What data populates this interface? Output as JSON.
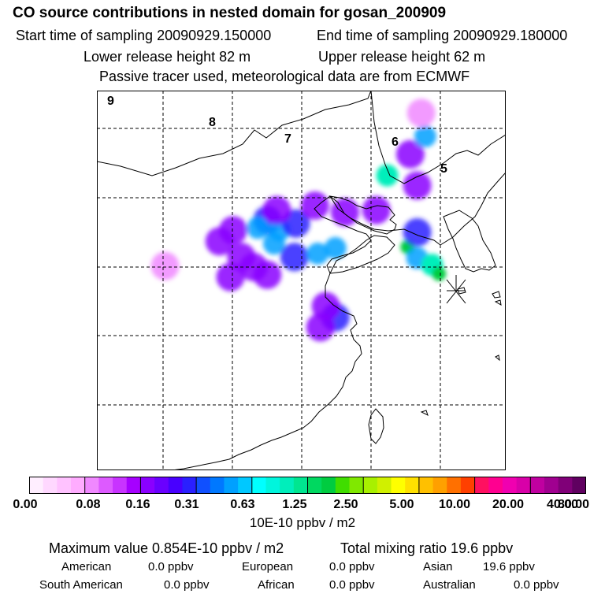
{
  "header": {
    "title": "CO  source contributions in nested domain for gosan_200909",
    "start_label": "Start time of sampling 20090929.150000",
    "end_label": "End time of sampling 20090929.180000",
    "lower_label": "Lower release height   82 m",
    "upper_label": "Upper release height   62 m",
    "note": "Passive tracer used, meteorological data are from ECMWF"
  },
  "chart_data": {
    "type": "heatmap",
    "title": "CO  source contributions in nested domain for gosan_200909",
    "map_labels": [
      "9",
      "8",
      "7",
      "6",
      "5"
    ],
    "colorbar": {
      "tick_labels": [
        "0.00",
        "0.08",
        "0.16",
        "0.31",
        "0.63",
        "1.25",
        "2.50",
        "5.00",
        "10.00",
        "20.00",
        "40.00",
        "80.00"
      ],
      "units": "10E-10 ppbv / m2",
      "colors": [
        "#ffeeff",
        "#ffd8ff",
        "#ffc2ff",
        "#ffacff",
        "#f088ff",
        "#dd5aff",
        "#c833ff",
        "#a600ff",
        "#8a00ff",
        "#6a00ff",
        "#4800ff",
        "#2a20ff",
        "#1050ff",
        "#0078ff",
        "#00a0ff",
        "#00c8ff",
        "#00ffff",
        "#00f5dd",
        "#00eebb",
        "#00e690",
        "#00d860",
        "#00cc40",
        "#40dd00",
        "#80e800",
        "#a8f000",
        "#d0f000",
        "#ffff00",
        "#ffe000",
        "#ffc000",
        "#ffa000",
        "#ff7000",
        "#ff4000",
        "#ff1060",
        "#ff0090",
        "#f000b0",
        "#d800a8",
        "#c000a0",
        "#a00090",
        "#800078",
        "#600060"
      ]
    },
    "intensity_levels": [
      0.02,
      0.05,
      0.1,
      0.2,
      0.35,
      0.6,
      0.85
    ],
    "plumes": [
      {
        "lon": 116.5,
        "lat": 39.9,
        "level": 2
      },
      {
        "lon": 115.8,
        "lat": 39.2,
        "level": 3
      },
      {
        "lon": 117.4,
        "lat": 39.0,
        "level": 3
      },
      {
        "lon": 118.6,
        "lat": 39.6,
        "level": 2
      },
      {
        "lon": 117.0,
        "lat": 37.8,
        "level": 3
      },
      {
        "lon": 118.5,
        "lat": 36.6,
        "level": 2
      },
      {
        "lon": 120.2,
        "lat": 36.9,
        "level": 3
      },
      {
        "lon": 121.5,
        "lat": 37.4,
        "level": 3
      },
      {
        "lon": 114.0,
        "lat": 39.0,
        "level": 1
      },
      {
        "lon": 113.0,
        "lat": 38.0,
        "level": 1
      },
      {
        "lon": 114.6,
        "lat": 36.6,
        "level": 1
      },
      {
        "lon": 115.5,
        "lat": 35.7,
        "level": 1
      },
      {
        "lon": 113.8,
        "lat": 34.8,
        "level": 1
      },
      {
        "lon": 116.5,
        "lat": 35.0,
        "level": 1
      },
      {
        "lon": 109.0,
        "lat": 35.8,
        "level": 0
      },
      {
        "lon": 117.2,
        "lat": 40.8,
        "level": 1
      },
      {
        "lon": 120.0,
        "lat": 41.2,
        "level": 1
      },
      {
        "lon": 124.5,
        "lat": 40.8,
        "level": 1
      },
      {
        "lon": 122.2,
        "lat": 40.6,
        "level": 1
      },
      {
        "lon": 125.3,
        "lat": 43.9,
        "level": 4
      },
      {
        "lon": 127.5,
        "lat": 43.0,
        "level": 1
      },
      {
        "lon": 127.0,
        "lat": 45.8,
        "level": 1
      },
      {
        "lon": 128.1,
        "lat": 47.4,
        "level": 3
      },
      {
        "lon": 127.8,
        "lat": 49.5,
        "level": 0
      },
      {
        "lon": 126.8,
        "lat": 37.5,
        "level": 5
      },
      {
        "lon": 127.5,
        "lat": 36.5,
        "level": 3
      },
      {
        "lon": 128.6,
        "lat": 35.9,
        "level": 4
      },
      {
        "lon": 129.1,
        "lat": 35.1,
        "level": 5
      },
      {
        "lon": 127.5,
        "lat": 38.8,
        "level": 2
      },
      {
        "lon": 121.5,
        "lat": 31.2,
        "level": 2
      },
      {
        "lon": 120.4,
        "lat": 30.3,
        "level": 1
      },
      {
        "lon": 120.8,
        "lat": 32.2,
        "level": 1
      }
    ]
  },
  "stats": {
    "max_label": "Maximum value  0.854E-10 ppbv / m2",
    "total_label": "Total mixing ratio       19.6 ppbv",
    "american_label": "American",
    "american_value": "0.0 ppbv",
    "european_label": "European",
    "european_value": "0.0 ppbv",
    "asian_label": "Asian",
    "asian_value": "19.6 ppbv",
    "south_american_label": "South American",
    "south_american_value": "0.0 ppbv",
    "african_label": "African",
    "african_value": "0.0 ppbv",
    "australian_label": "Australian",
    "australian_value": "0.0 ppbv"
  }
}
